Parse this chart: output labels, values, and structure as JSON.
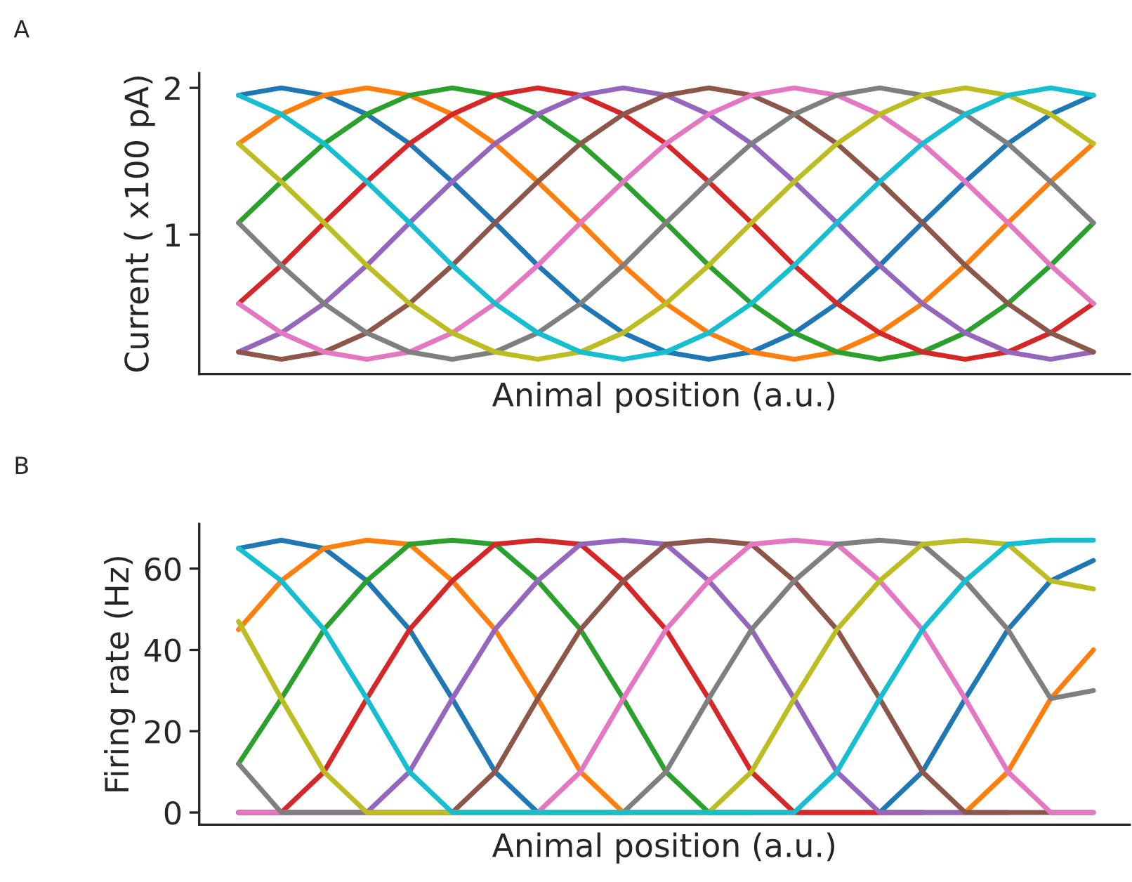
{
  "chart_data": [
    {
      "type": "line",
      "ylabel": "Current ( x100 pA)",
      "xlabel": "Animal position (a.u.)",
      "annotations": [
        "A"
      ],
      "ylim": [
        0.05,
        2.1
      ],
      "yticks": [
        1,
        2
      ],
      "grid": false,
      "legend": false,
      "tick_labels": "y",
      "categories": [
        null,
        null,
        null,
        null,
        null,
        null,
        null,
        null,
        null,
        null,
        null,
        null,
        null,
        null,
        null,
        null,
        null,
        null,
        null,
        null,
        null
      ],
      "series": [
        {
          "color": "#1f77b4",
          "values": [
            1.95,
            2.0,
            1.95,
            1.82,
            1.62,
            1.36,
            1.08,
            0.79,
            0.53,
            0.33,
            0.2,
            0.15,
            0.2,
            0.33,
            0.53,
            0.79,
            1.08,
            1.36,
            1.62,
            1.82,
            1.95
          ]
        },
        {
          "color": "#ff7f0e",
          "values": [
            1.62,
            1.82,
            1.95,
            2.0,
            1.95,
            1.82,
            1.62,
            1.36,
            1.08,
            0.79,
            0.53,
            0.33,
            0.2,
            0.15,
            0.2,
            0.33,
            0.53,
            0.79,
            1.08,
            1.36,
            1.62
          ]
        },
        {
          "color": "#2ca02c",
          "values": [
            1.08,
            1.36,
            1.62,
            1.82,
            1.95,
            2.0,
            1.95,
            1.82,
            1.62,
            1.36,
            1.08,
            0.79,
            0.53,
            0.33,
            0.2,
            0.15,
            0.2,
            0.33,
            0.53,
            0.79,
            1.08
          ]
        },
        {
          "color": "#d62728",
          "values": [
            0.53,
            0.79,
            1.08,
            1.36,
            1.62,
            1.82,
            1.95,
            2.0,
            1.95,
            1.82,
            1.62,
            1.36,
            1.08,
            0.79,
            0.53,
            0.33,
            0.2,
            0.15,
            0.2,
            0.33,
            0.53
          ]
        },
        {
          "color": "#9467bd",
          "values": [
            0.2,
            0.33,
            0.53,
            0.79,
            1.08,
            1.36,
            1.62,
            1.82,
            1.95,
            2.0,
            1.95,
            1.82,
            1.62,
            1.36,
            1.08,
            0.79,
            0.53,
            0.33,
            0.2,
            0.15,
            0.2
          ]
        },
        {
          "color": "#8c564b",
          "values": [
            0.2,
            0.15,
            0.2,
            0.33,
            0.53,
            0.79,
            1.08,
            1.36,
            1.62,
            1.82,
            1.95,
            2.0,
            1.95,
            1.82,
            1.62,
            1.36,
            1.08,
            0.79,
            0.53,
            0.33,
            0.2
          ]
        },
        {
          "color": "#e377c2",
          "values": [
            0.53,
            0.33,
            0.2,
            0.15,
            0.2,
            0.33,
            0.53,
            0.79,
            1.08,
            1.36,
            1.62,
            1.82,
            1.95,
            2.0,
            1.95,
            1.82,
            1.62,
            1.36,
            1.08,
            0.79,
            0.53
          ]
        },
        {
          "color": "#7f7f7f",
          "values": [
            1.08,
            0.79,
            0.53,
            0.33,
            0.2,
            0.15,
            0.2,
            0.33,
            0.53,
            0.79,
            1.08,
            1.36,
            1.62,
            1.82,
            1.95,
            2.0,
            1.95,
            1.82,
            1.62,
            1.36,
            1.08
          ]
        },
        {
          "color": "#bcbd22",
          "values": [
            1.62,
            1.36,
            1.08,
            0.79,
            0.53,
            0.33,
            0.2,
            0.15,
            0.2,
            0.33,
            0.53,
            0.79,
            1.08,
            1.36,
            1.62,
            1.82,
            1.95,
            2.0,
            1.95,
            1.82,
            1.62
          ]
        },
        {
          "color": "#17becf",
          "values": [
            1.95,
            1.82,
            1.62,
            1.36,
            1.08,
            0.79,
            0.53,
            0.33,
            0.2,
            0.15,
            0.2,
            0.33,
            0.53,
            0.79,
            1.08,
            1.36,
            1.62,
            1.82,
            1.95,
            2.0,
            1.95
          ]
        }
      ]
    },
    {
      "type": "line",
      "ylabel": "Firing rate (Hz)",
      "xlabel": "Animal position (a.u.)",
      "annotations": [
        "B"
      ],
      "ylim": [
        -3,
        71
      ],
      "yticks": [
        0,
        20,
        40,
        60
      ],
      "grid": false,
      "legend": false,
      "tick_labels": "y",
      "categories": [
        null,
        null,
        null,
        null,
        null,
        null,
        null,
        null,
        null,
        null,
        null,
        null,
        null,
        null,
        null,
        null,
        null,
        null,
        null,
        null,
        null
      ],
      "series": [
        {
          "color": "#1f77b4",
          "values": [
            65,
            67,
            65,
            57,
            45,
            28,
            10,
            0,
            0,
            0,
            0,
            0,
            0,
            0,
            0,
            0,
            10,
            28,
            45,
            57,
            62
          ]
        },
        {
          "color": "#ff7f0e",
          "values": [
            45,
            57,
            65,
            67,
            66,
            57,
            45,
            28,
            10,
            0,
            0,
            0,
            0,
            0,
            0,
            0,
            0,
            0,
            10,
            28,
            40
          ]
        },
        {
          "color": "#2ca02c",
          "values": [
            12,
            28,
            45,
            57,
            66,
            67,
            66,
            57,
            45,
            28,
            10,
            0,
            0,
            null,
            null,
            null,
            null,
            null,
            null,
            null,
            null
          ]
        },
        {
          "color": "#d62728",
          "values": [
            0,
            0,
            10,
            28,
            45,
            57,
            66,
            67,
            66,
            57,
            45,
            28,
            10,
            0,
            0,
            0,
            0,
            null,
            null,
            null,
            null
          ]
        },
        {
          "color": "#9467bd",
          "values": [
            0,
            0,
            0,
            0,
            10,
            28,
            45,
            57,
            66,
            67,
            66,
            57,
            45,
            28,
            10,
            0,
            0,
            0,
            0,
            null,
            null
          ]
        },
        {
          "color": "#8c564b",
          "values": [
            0,
            0,
            0,
            0,
            0,
            0,
            10,
            28,
            45,
            57,
            66,
            67,
            66,
            57,
            45,
            28,
            10,
            0,
            0,
            0,
            0
          ]
        },
        {
          "color": "#e377c2",
          "values": [
            0,
            0,
            0,
            0,
            0,
            0,
            0,
            0,
            10,
            28,
            45,
            57,
            66,
            67,
            66,
            57,
            45,
            28,
            10,
            0,
            0
          ]
        },
        {
          "color": "#7f7f7f",
          "values": [
            12,
            0,
            0,
            0,
            0,
            0,
            0,
            0,
            0,
            0,
            10,
            28,
            45,
            57,
            66,
            67,
            66,
            57,
            45,
            28,
            30
          ]
        },
        {
          "color": "#bcbd22",
          "values": [
            47,
            28,
            10,
            0,
            0,
            0,
            0,
            0,
            0,
            0,
            0,
            0,
            10,
            28,
            45,
            57,
            66,
            67,
            66,
            57,
            55
          ]
        },
        {
          "color": "#17becf",
          "values": [
            65,
            57,
            45,
            28,
            10,
            0,
            0,
            0,
            0,
            0,
            0,
            0,
            0,
            0,
            10,
            28,
            45,
            57,
            66,
            67,
            67
          ]
        }
      ]
    }
  ]
}
